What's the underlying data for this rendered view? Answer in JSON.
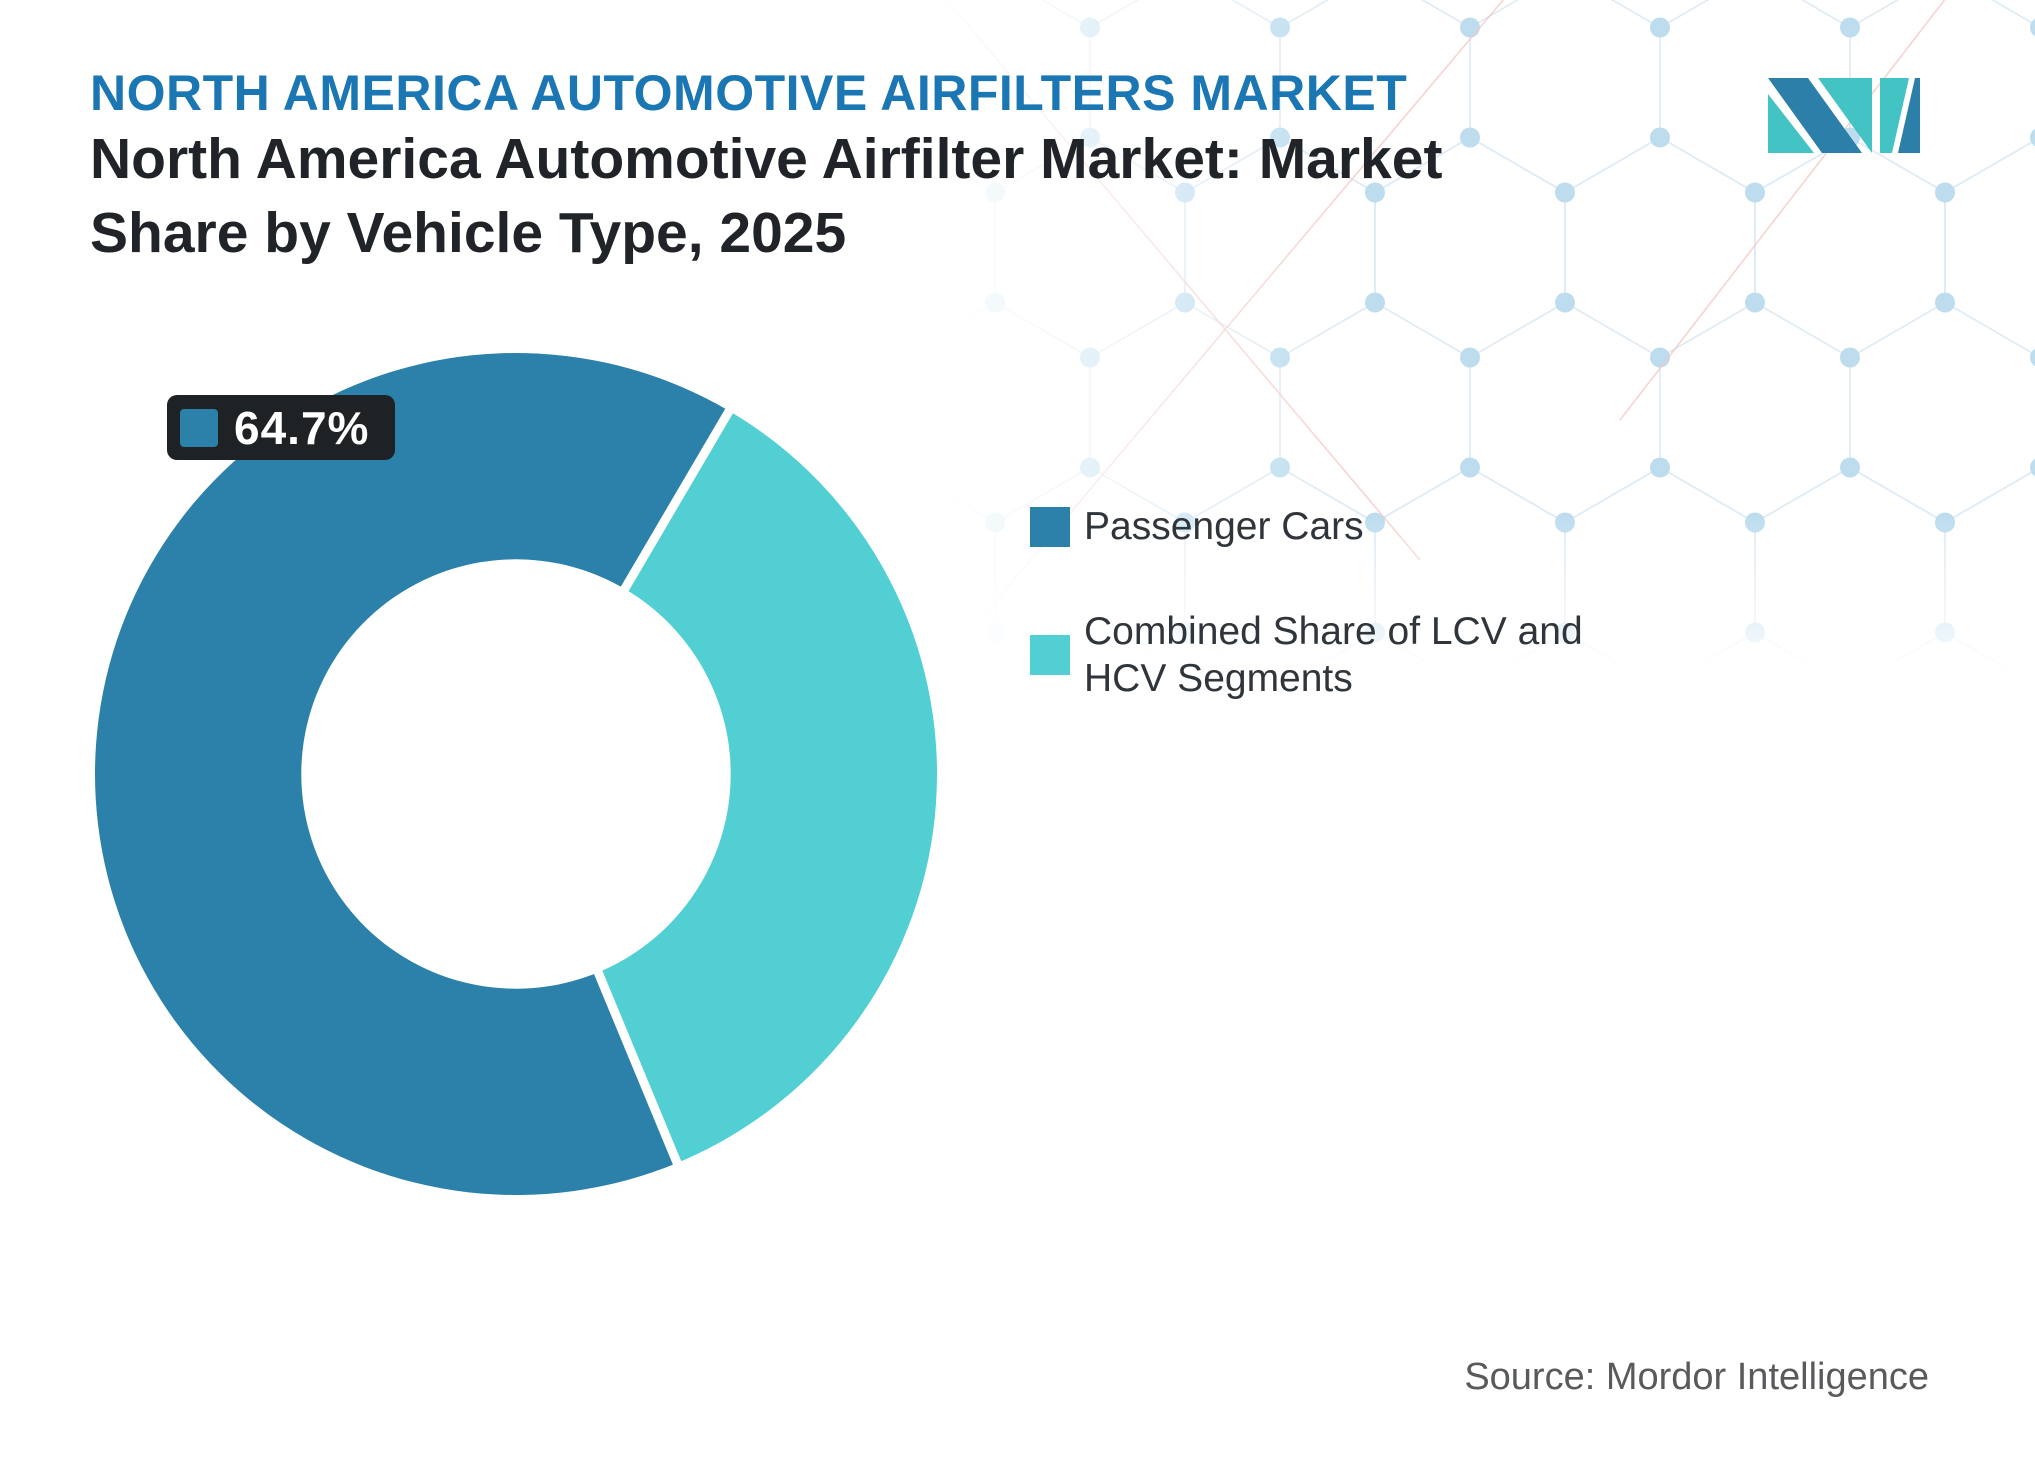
{
  "header": {
    "eyebrow": "NORTH AMERICA AUTOMOTIVE AIRFILTERS MARKET",
    "title_lines": [
      "North America Automotive Airfilter Market: Market",
      "Share by Vehicle Type, 2025"
    ]
  },
  "chart_data": {
    "type": "pie",
    "subtype": "donut",
    "title": "North America Automotive Airfilter Market: Market Share by Vehicle Type, 2025",
    "categories": [
      "Passenger Cars",
      "Combined Share of LCV and HCV Segments"
    ],
    "values": [
      64.7,
      35.3
    ],
    "unit": "%",
    "colors": [
      "#2B81AA",
      "#52CFD3"
    ],
    "data_labels": [
      {
        "series_index": 0,
        "text": "64.7%"
      }
    ],
    "start_angle_deg": 157.5,
    "inner_radius_ratio": 0.51,
    "gap_width": 9,
    "legend_position": "right"
  },
  "footer": {
    "source_label": "Source: Mordor Intelligence"
  },
  "theme": {
    "background": "#FFFFFF",
    "eyebrow_color": "#1B76B4",
    "title_color": "#202428",
    "legend_text_color": "#2F353A",
    "source_color": "#595A5C",
    "label_box_bg": "#1F2224",
    "label_text_color": "#FFFFFF",
    "pattern_line_color": "#DCE9F3",
    "pattern_dot_color": "#BADBEE",
    "pattern_accent_color": "#F2C6C2",
    "logo_blue": "#2C7FA8",
    "logo_teal": "#43C3C4"
  }
}
